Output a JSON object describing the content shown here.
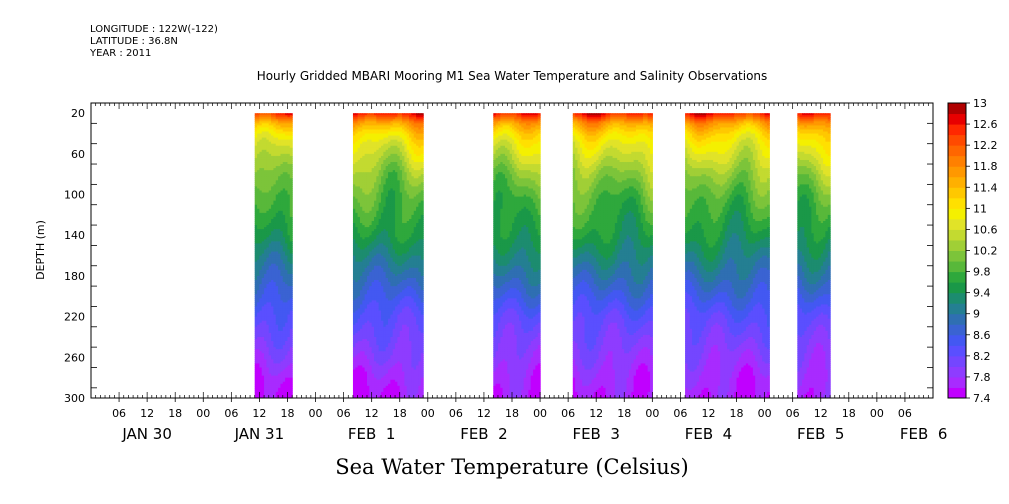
{
  "header": {
    "longitude": "LONGITUDE : 122W(-122)",
    "latitude": "LATITUDE : 36.8N",
    "year": "YEAR : 2011"
  },
  "chart_data": {
    "type": "heatmap",
    "title": "Hourly Gridded MBARI Mooring M1 Sea Water Temperature and Salinity Observations",
    "xlabel": "Sea Water Temperature (Celsius)",
    "ylabel": "DEPTH (m)",
    "ylim": [
      300,
      10
    ],
    "yticks": [
      20,
      60,
      100,
      140,
      180,
      220,
      260,
      300
    ],
    "y_minor_step": 20,
    "x_hours_range": [
      0,
      180
    ],
    "x_hour_ticks": [
      "06",
      "12",
      "18",
      "00",
      "06",
      "12",
      "18",
      "00",
      "06",
      "12",
      "18",
      "00",
      "06",
      "12",
      "18",
      "00",
      "06",
      "12",
      "18",
      "00",
      "06",
      "12",
      "18",
      "00",
      "06",
      "12",
      "18",
      "00",
      "06"
    ],
    "x_day_labels": [
      {
        "label": "JAN 30",
        "hour": 12
      },
      {
        "label": "JAN 31",
        "hour": 36
      },
      {
        "label": "FEB  1",
        "hour": 60
      },
      {
        "label": "FEB  2",
        "hour": 84
      },
      {
        "label": "FEB  3",
        "hour": 108
      },
      {
        "label": "FEB  4",
        "hour": 132
      },
      {
        "label": "FEB  5",
        "hour": 156
      },
      {
        "label": "FEB  6",
        "hour": 178
      }
    ],
    "colorbar": {
      "levels": [
        7.4,
        7.6,
        7.8,
        8.0,
        8.2,
        8.4,
        8.6,
        8.8,
        9.0,
        9.2,
        9.4,
        9.6,
        9.8,
        10.0,
        10.2,
        10.4,
        10.6,
        10.8,
        11.0,
        11.2,
        11.4,
        11.6,
        11.8,
        12.0,
        12.2,
        12.4,
        12.6,
        12.8,
        13.0
      ],
      "tick_labels": [
        "7.4",
        "7.8",
        "8.2",
        "8.6",
        "9",
        "9.4",
        "9.8",
        "10.2",
        "10.6",
        "11",
        "11.4",
        "11.8",
        "12.2",
        "12.6",
        "13"
      ],
      "colors": [
        "#c000ff",
        "#a82bff",
        "#8e3cff",
        "#7446ff",
        "#5a4fff",
        "#4358f2",
        "#3a63d2",
        "#2f6fb2",
        "#247f92",
        "#1c8c6f",
        "#1a9848",
        "#2ea83c",
        "#58b83a",
        "#7cc43a",
        "#a0cf36",
        "#c3da30",
        "#e1e328",
        "#f4f000",
        "#ffe000",
        "#ffc800",
        "#ffb000",
        "#ff9800",
        "#ff8000",
        "#ff6600",
        "#ff4a00",
        "#ff2800",
        "#e80000",
        "#b00000"
      ]
    },
    "segments": [
      {
        "start_hour": 35,
        "end_hour": 43
      },
      {
        "start_hour": 56,
        "end_hour": 71
      },
      {
        "start_hour": 86,
        "end_hour": 96
      },
      {
        "start_hour": 103,
        "end_hour": 120
      },
      {
        "start_hour": 127,
        "end_hour": 145
      },
      {
        "start_hour": 151,
        "end_hour": 158
      }
    ],
    "profile": {
      "depths": [
        20,
        25,
        30,
        40,
        50,
        60,
        80,
        100,
        120,
        140,
        160,
        180,
        200,
        220,
        240,
        260,
        280,
        300
      ],
      "temps": [
        12.6,
        12.1,
        11.6,
        11.1,
        10.8,
        10.6,
        10.2,
        9.9,
        9.7,
        9.5,
        9.2,
        8.9,
        8.6,
        8.3,
        8.1,
        7.9,
        7.7,
        7.6
      ]
    }
  }
}
